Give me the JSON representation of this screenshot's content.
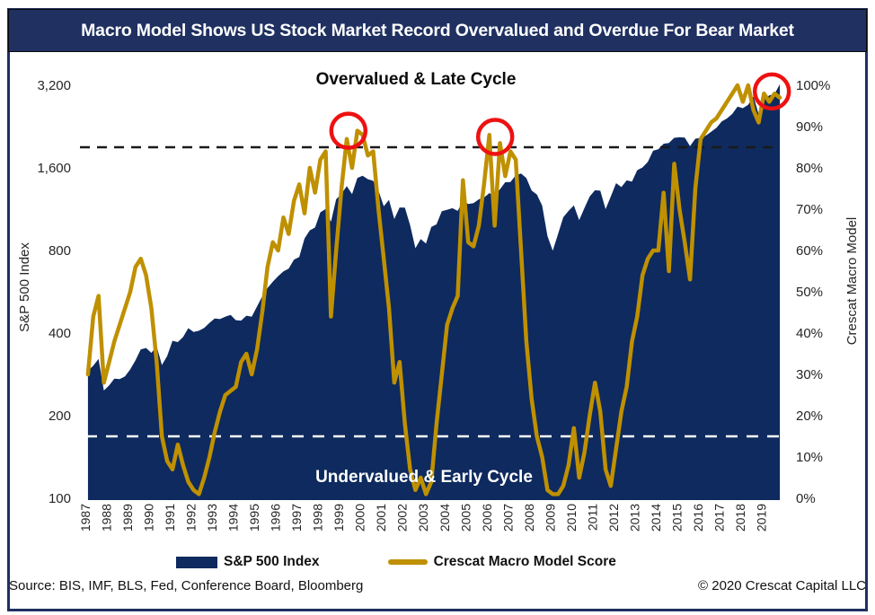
{
  "banner": {
    "title": "Macro Model Shows US Stock Market Record Overvalued and Overdue For Bear Market"
  },
  "annotations": {
    "top_zone": "Overvalued & Late Cycle",
    "bottom_zone": "Undervalued & Early Cycle"
  },
  "legend": {
    "sp500_label": "S&P 500 Index",
    "macro_label": "Crescat Macro Model Score"
  },
  "footer": {
    "source": "Source: BIS, IMF, BLS, Fed, Conference Board, Bloomberg",
    "copyright": "© 2020 Crescat Capital LLC"
  },
  "colors": {
    "banner_navy": "#1f3061",
    "area_navy": "#0e2a5e",
    "gold": "#bf9000",
    "circle_red": "#ee1111",
    "dash_black": "#1a1a1a",
    "dash_white": "#ffffff",
    "tick_text": "#262626"
  },
  "chart_data": {
    "type": "area+line",
    "title": "Overvalued & Late Cycle / Undervalued & Early Cycle (zones)",
    "x": {
      "start_year": 1987,
      "end_year": 2019,
      "points_per_year": 4,
      "total_years": 33
    },
    "x_axis": {
      "labels": [
        "1987",
        "1988",
        "1989",
        "1990",
        "1991",
        "1992",
        "1993",
        "1994",
        "1995",
        "1996",
        "1997",
        "1998",
        "1999",
        "2000",
        "2001",
        "2002",
        "2003",
        "2004",
        "2005",
        "2006",
        "2007",
        "2008",
        "2009",
        "2010",
        "2011",
        "2012",
        "2013",
        "2014",
        "2015",
        "2016",
        "2017",
        "2018",
        "2019"
      ]
    },
    "left_axis": {
      "label": "S&P 500 Index",
      "scale": "log2",
      "range": [
        100,
        3200
      ],
      "ticks": [
        {
          "label": "3,200",
          "value": 3200
        },
        {
          "label": "1,600",
          "value": 1600
        },
        {
          "label": "800",
          "value": 800
        },
        {
          "label": "400",
          "value": 400
        },
        {
          "label": "200",
          "value": 200
        },
        {
          "label": "100",
          "value": 100
        }
      ]
    },
    "right_axis": {
      "label": "Crescat Macro Model",
      "scale": "linear",
      "range": [
        0,
        100
      ],
      "ticks": [
        {
          "label": "100%",
          "value": 100
        },
        {
          "label": "90%",
          "value": 90
        },
        {
          "label": "80%",
          "value": 80
        },
        {
          "label": "70%",
          "value": 70
        },
        {
          "label": "60%",
          "value": 60
        },
        {
          "label": "50%",
          "value": 50
        },
        {
          "label": "40%",
          "value": 40
        },
        {
          "label": "30%",
          "value": 30
        },
        {
          "label": "20%",
          "value": 20
        },
        {
          "label": "10%",
          "value": 10
        },
        {
          "label": "0%",
          "value": 0
        }
      ]
    },
    "series": [
      {
        "name": "S&P 500 Index",
        "type": "area",
        "axis": "left",
        "color": "#0e2a5e",
        "values": [
          292,
          304,
          322,
          247,
          258,
          273,
          272,
          278,
          295,
          318,
          349,
          353,
          339,
          358,
          306,
          330,
          375,
          371,
          387,
          417,
          404,
          408,
          418,
          436,
          452,
          450,
          459,
          466,
          446,
          444,
          463,
          459,
          500,
          544,
          584,
          616,
          645,
          671,
          687,
          741,
          757,
          885,
          947,
          970,
          1102,
          1134,
          1017,
          1229,
          1286,
          1373,
          1283,
          1469,
          1499,
          1455,
          1436,
          1320,
          1160,
          1224,
          1041,
          1148,
          1147,
          990,
          815,
          880,
          848,
          975,
          996,
          1112,
          1126,
          1141,
          1115,
          1212,
          1181,
          1191,
          1229,
          1248,
          1295,
          1270,
          1336,
          1418,
          1421,
          1503,
          1527,
          1468,
          1323,
          1280,
          1166,
          903,
          798,
          919,
          1057,
          1115,
          1169,
          1031,
          1141,
          1258,
          1326,
          1321,
          1131,
          1258,
          1408,
          1362,
          1441,
          1426,
          1569,
          1606,
          1682,
          1848,
          1872,
          1960,
          1972,
          2059,
          2068,
          2063,
          1920,
          2044,
          2060,
          2099,
          2168,
          2239,
          2363,
          2423,
          2519,
          2674,
          2641,
          2718,
          2914,
          2507,
          2834,
          2942,
          2977,
          3231
        ]
      },
      {
        "name": "Crescat Macro Model Score",
        "type": "line",
        "axis": "right",
        "color": "#bf9000",
        "values": [
          30,
          44,
          49,
          28,
          33,
          38,
          42,
          46,
          50,
          56,
          58,
          54,
          46,
          33,
          15,
          9,
          7,
          13,
          8,
          4,
          2,
          1,
          5,
          10,
          16,
          21,
          25,
          26,
          27,
          33,
          35,
          30,
          36,
          45,
          56,
          62,
          60,
          68,
          64,
          72,
          76,
          69,
          80,
          74,
          82,
          84,
          44,
          60,
          75,
          87,
          80,
          89,
          88,
          83,
          84,
          70,
          58,
          46,
          28,
          33,
          18,
          7,
          2,
          5,
          1,
          4,
          18,
          30,
          42,
          46,
          49,
          77,
          62,
          61,
          66,
          76,
          88,
          66,
          86,
          78,
          84,
          82,
          60,
          38,
          24,
          15,
          10,
          2,
          1,
          1,
          3,
          8,
          17,
          5,
          11,
          20,
          28,
          21,
          7,
          3,
          12,
          21,
          27,
          38,
          44,
          54,
          58,
          60,
          60,
          74,
          55,
          81,
          70,
          62,
          53,
          75,
          87,
          89,
          91,
          92,
          94,
          96,
          98,
          100,
          96,
          100,
          94,
          91,
          98,
          96,
          98,
          97
        ]
      }
    ],
    "thresholds": [
      {
        "name": "overvalued-threshold",
        "pct": 85,
        "style": "dashed",
        "color": "#1a1a1a"
      },
      {
        "name": "undervalued-threshold",
        "pct": 15,
        "style": "dashed",
        "color": "#ffffff"
      }
    ],
    "highlight_circles": [
      {
        "year": 1999.45,
        "pct": 89,
        "r": 19
      },
      {
        "year": 2006.4,
        "pct": 87.5,
        "r": 19
      },
      {
        "year": 2019.5,
        "pct": 98.5,
        "r": 19
      }
    ],
    "grid": false,
    "legend_position": "bottom"
  }
}
